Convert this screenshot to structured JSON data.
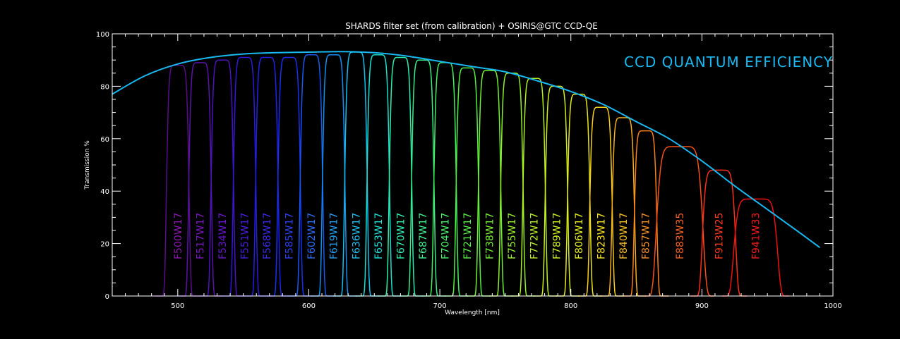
{
  "chart_data": {
    "type": "line",
    "title": "SHARDS filter set (from calibration) + OSIRIS@GTC CCD-QE",
    "xlabel": "Wavelength [nm]",
    "ylabel": "Transmission %",
    "xlim": [
      450,
      1000
    ],
    "ylim": [
      0,
      100
    ],
    "xticks": [
      500,
      600,
      700,
      800,
      900,
      1000
    ],
    "yticks": [
      0,
      20,
      40,
      60,
      80,
      100
    ],
    "annotation": "CCD QUANTUM EFFICIENCY",
    "annotation_color": "#18b8f0",
    "qe_curve": {
      "name": "CCD quantum efficiency",
      "color": "#18b8f0",
      "x": [
        450,
        475,
        500,
        525,
        550,
        575,
        600,
        625,
        650,
        675,
        700,
        725,
        750,
        775,
        800,
        825,
        850,
        875,
        900,
        925,
        950,
        975,
        990
      ],
      "y": [
        77,
        84,
        88.5,
        91,
        92.3,
        92.8,
        93,
        93.2,
        92.8,
        91.5,
        89.5,
        87.5,
        85.5,
        82,
        78,
        73,
        66.5,
        60,
        51.5,
        42,
        33,
        24,
        18.5
      ]
    },
    "filters": [
      {
        "name": "F500W17",
        "center": 500,
        "width": 17,
        "peak": 88,
        "label_color": "#8a18b0",
        "line_color": "#5a0c88"
      },
      {
        "name": "F517W17",
        "center": 517,
        "width": 17,
        "peak": 89,
        "label_color": "#7a16c0",
        "line_color": "#5a12a8"
      },
      {
        "name": "F534W17",
        "center": 534,
        "width": 17,
        "peak": 90,
        "label_color": "#6a14d0",
        "line_color": "#4c12c0"
      },
      {
        "name": "F551W17",
        "center": 551,
        "width": 17,
        "peak": 91,
        "label_color": "#4a1ee0",
        "line_color": "#3018d8"
      },
      {
        "name": "F568W17",
        "center": 568,
        "width": 17,
        "peak": 91,
        "label_color": "#3a2ae8",
        "line_color": "#2020e8"
      },
      {
        "name": "F585W17",
        "center": 585,
        "width": 17,
        "peak": 91,
        "label_color": "#2a40f0",
        "line_color": "#1830f0"
      },
      {
        "name": "F602W17",
        "center": 602,
        "width": 17,
        "peak": 92,
        "label_color": "#2a6cf5",
        "line_color": "#1858f0"
      },
      {
        "name": "F619W17",
        "center": 619,
        "width": 17,
        "peak": 92,
        "label_color": "#24a0f0",
        "line_color": "#1090f0"
      },
      {
        "name": "F636W17",
        "center": 636,
        "width": 17,
        "peak": 93,
        "label_color": "#20c0f0",
        "line_color": "#10c0f0"
      },
      {
        "name": "F653W17",
        "center": 653,
        "width": 17,
        "peak": 92,
        "label_color": "#20e0d8",
        "line_color": "#18e0d0"
      },
      {
        "name": "F670W17",
        "center": 670,
        "width": 17,
        "peak": 91,
        "label_color": "#30f0b8",
        "line_color": "#28f0b0"
      },
      {
        "name": "F687W17",
        "center": 687,
        "width": 17,
        "peak": 90,
        "label_color": "#40f090",
        "line_color": "#38f088"
      },
      {
        "name": "F704W17",
        "center": 704,
        "width": 17,
        "peak": 89,
        "label_color": "#48f068",
        "line_color": "#40f060"
      },
      {
        "name": "F721W17",
        "center": 721,
        "width": 17,
        "peak": 87,
        "label_color": "#58f048",
        "line_color": "#50f040"
      },
      {
        "name": "F738W17",
        "center": 738,
        "width": 17,
        "peak": 86,
        "label_color": "#78f038",
        "line_color": "#70f030"
      },
      {
        "name": "F755W17",
        "center": 755,
        "width": 17,
        "peak": 85,
        "label_color": "#98f030",
        "line_color": "#90f028"
      },
      {
        "name": "F772W17",
        "center": 772,
        "width": 17,
        "peak": 83,
        "label_color": "#b8f028",
        "line_color": "#b0f020"
      },
      {
        "name": "F789W17",
        "center": 789,
        "width": 17,
        "peak": 80,
        "label_color": "#d0f020",
        "line_color": "#d0f018"
      },
      {
        "name": "F806W17",
        "center": 806,
        "width": 17,
        "peak": 77,
        "label_color": "#e8f020",
        "line_color": "#e8e818"
      },
      {
        "name": "F823W17",
        "center": 823,
        "width": 17,
        "peak": 72,
        "label_color": "#f8e020",
        "line_color": "#f8d018"
      },
      {
        "name": "F840W17",
        "center": 840,
        "width": 17,
        "peak": 68,
        "label_color": "#f8c020",
        "line_color": "#f8b018"
      },
      {
        "name": "F857W17",
        "center": 857,
        "width": 17,
        "peak": 63,
        "label_color": "#f89020",
        "line_color": "#f88018"
      },
      {
        "name": "F883W35",
        "center": 883,
        "width": 35,
        "peak": 57,
        "label_color": "#f86020",
        "line_color": "#f85018"
      },
      {
        "name": "F913W25",
        "center": 913,
        "width": 25,
        "peak": 48,
        "label_color": "#f83820",
        "line_color": "#f83018"
      },
      {
        "name": "F941W33",
        "center": 941,
        "width": 33,
        "peak": 37,
        "label_color": "#f81818",
        "line_color": "#f01010"
      }
    ]
  }
}
